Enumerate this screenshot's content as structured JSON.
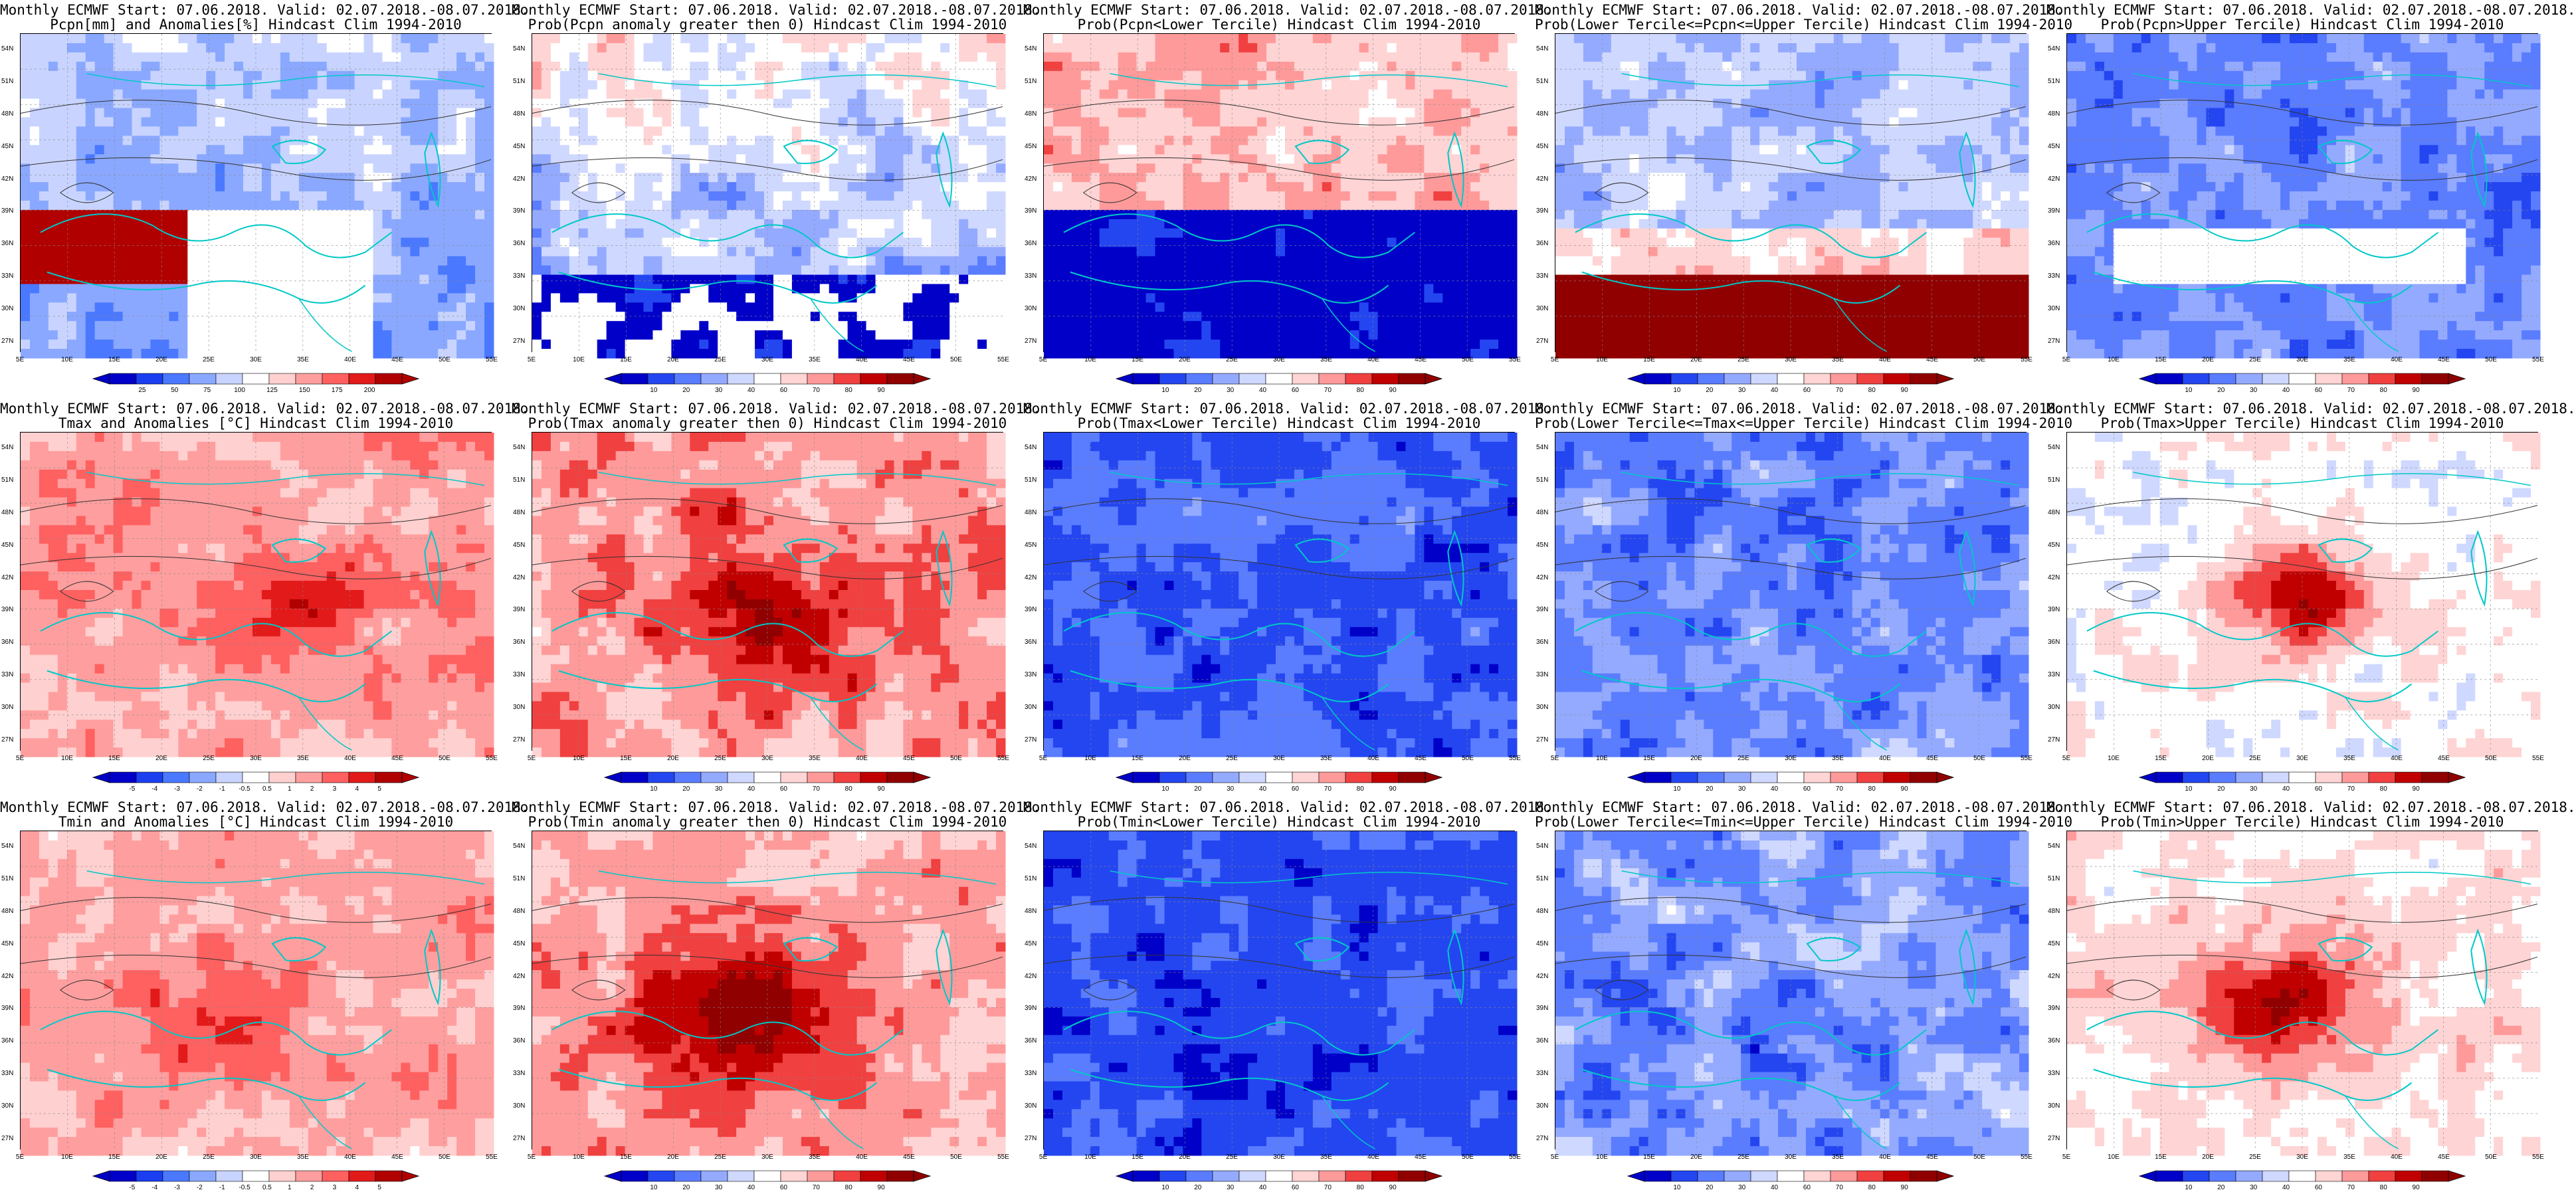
{
  "figure": {
    "lat_labels": [
      "54N",
      "51N",
      "48N",
      "45N",
      "42N",
      "39N",
      "36N",
      "33N",
      "30N",
      "27N"
    ],
    "lon_labels": [
      "5E",
      "10E",
      "15E",
      "20E",
      "25E",
      "30E",
      "35E",
      "40E",
      "45E",
      "50E",
      "55E"
    ],
    "color_anom": [
      "#0000c8",
      "#1a3ef0",
      "#4a78ff",
      "#8aa8ff",
      "#c8d4ff",
      "#ffffff",
      "#ffd0d0",
      "#ff9e9e",
      "#ff6060",
      "#e21a1a",
      "#b00000"
    ],
    "color_prob": [
      "#0000c8",
      "#2446f0",
      "#5a7cff",
      "#94aaff",
      "#cfd8ff",
      "#ffffff",
      "#ffd4d4",
      "#ff9a9a",
      "#f04040",
      "#c00000",
      "#900000"
    ]
  },
  "panels": [
    {
      "line1": "Monthly ECMWF Start: 07.06.2018. Valid: 02.07.2018.-08.07.2018.",
      "line2": "Pcpn[mm] and Anomalies[%] Hindcast Clim 1994-2010",
      "scale": "anom",
      "cbar_labels": [
        "25",
        "50",
        "75",
        "100",
        "125",
        "150",
        "175",
        "200"
      ],
      "pattern": "pcpn_anom"
    },
    {
      "line1": "Monthly ECMWF Start: 07.06.2018. Valid: 02.07.2018.-08.07.2018.",
      "line2": "Prob(Pcpn anomaly greater then 0) Hindcast Clim 1994-2010",
      "scale": "prob",
      "cbar_labels": [
        "10",
        "20",
        "30",
        "40",
        "60",
        "70",
        "80",
        "90"
      ],
      "pattern": "pcpn_gt0"
    },
    {
      "line1": "Monthly ECMWF Start: 07.06.2018. Valid: 02.07.2018.-08.07.2018.",
      "line2": "Prob(Pcpn<Lower Tercile) Hindcast Clim 1994-2010",
      "scale": "prob",
      "cbar_labels": [
        "10",
        "20",
        "30",
        "40",
        "60",
        "70",
        "80",
        "90"
      ],
      "pattern": "pcpn_low"
    },
    {
      "line1": "Monthly ECMWF Start: 07.06.2018. Valid: 02.07.2018.-08.07.2018.",
      "line2": "Prob(Lower Tercile<=Pcpn<=Upper Tercile) Hindcast Clim 1994-2010",
      "scale": "prob",
      "cbar_labels": [
        "10",
        "20",
        "30",
        "40",
        "60",
        "70",
        "80",
        "90"
      ],
      "pattern": "pcpn_mid"
    },
    {
      "line1": "Monthly ECMWF Start: 07.06.2018. Valid: 02.07.2018.-08.07.2018.",
      "line2": "Prob(Pcpn>Upper Tercile) Hindcast Clim 1994-2010",
      "scale": "prob",
      "cbar_labels": [
        "10",
        "20",
        "30",
        "40",
        "60",
        "70",
        "80",
        "90"
      ],
      "pattern": "pcpn_up"
    },
    {
      "line1": "Monthly ECMWF Start: 07.06.2018. Valid: 02.07.2018.-08.07.2018.",
      "line2": "Tmax and Anomalies [°C] Hindcast Clim 1994-2010",
      "scale": "anom",
      "cbar_labels": [
        "-5",
        "-4",
        "-3",
        "-2",
        "-1",
        "-0.5",
        "0.5",
        "1",
        "2",
        "3",
        "4",
        "5"
      ],
      "pattern": "tmax_anom"
    },
    {
      "line1": "Monthly ECMWF Start: 07.06.2018. Valid: 02.07.2018.-08.07.2018.",
      "line2": "Prob(Tmax anomaly greater then 0) Hindcast Clim 1994-2010",
      "scale": "prob",
      "cbar_labels": [
        "10",
        "20",
        "30",
        "40",
        "60",
        "70",
        "80",
        "90"
      ],
      "pattern": "tmax_gt0"
    },
    {
      "line1": "Monthly ECMWF Start: 07.06.2018. Valid: 02.07.2018.-08.07.2018.",
      "line2": "Prob(Tmax<Lower Tercile) Hindcast Clim 1994-2010",
      "scale": "prob",
      "cbar_labels": [
        "10",
        "20",
        "30",
        "40",
        "60",
        "70",
        "80",
        "90"
      ],
      "pattern": "tmax_low"
    },
    {
      "line1": "Monthly ECMWF Start: 07.06.2018. Valid: 02.07.2018.-08.07.2018.",
      "line2": "Prob(Lower Tercile<=Tmax<=Upper Tercile) Hindcast Clim 1994-2010",
      "scale": "prob",
      "cbar_labels": [
        "10",
        "20",
        "30",
        "40",
        "60",
        "70",
        "80",
        "90"
      ],
      "pattern": "tmax_mid"
    },
    {
      "line1": "Monthly ECMWF Start: 07.06.2018. Valid: 02.07.2018.-08.07.2018.",
      "line2": "Prob(Tmax>Upper Tercile) Hindcast Clim 1994-2010",
      "scale": "prob",
      "cbar_labels": [
        "10",
        "20",
        "30",
        "40",
        "60",
        "70",
        "80",
        "90"
      ],
      "pattern": "tmax_up"
    },
    {
      "line1": "Monthly ECMWF Start: 07.06.2018. Valid: 02.07.2018.-08.07.2018.",
      "line2": "Tmin and Anomalies [°C] Hindcast Clim 1994-2010",
      "scale": "anom",
      "cbar_labels": [
        "-5",
        "-4",
        "-3",
        "-2",
        "-1",
        "-0.5",
        "0.5",
        "1",
        "2",
        "3",
        "4",
        "5"
      ],
      "pattern": "tmin_anom"
    },
    {
      "line1": "Monthly ECMWF Start: 07.06.2018. Valid: 02.07.2018.-08.07.2018.",
      "line2": "Prob(Tmin anomaly greater then 0) Hindcast Clim 1994-2010",
      "scale": "prob",
      "cbar_labels": [
        "10",
        "20",
        "30",
        "40",
        "60",
        "70",
        "80",
        "90"
      ],
      "pattern": "tmin_gt0"
    },
    {
      "line1": "Monthly ECMWF Start: 07.06.2018. Valid: 02.07.2018.-08.07.2018.",
      "line2": "Prob(Tmin<Lower Tercile) Hindcast Clim 1994-2010",
      "scale": "prob",
      "cbar_labels": [
        "10",
        "20",
        "30",
        "40",
        "60",
        "70",
        "80",
        "90"
      ],
      "pattern": "tmin_low"
    },
    {
      "line1": "Monthly ECMWF Start: 07.06.2018. Valid: 02.07.2018.-08.07.2018.",
      "line2": "Prob(Lower Tercile<=Tmin<=Upper Tercile) Hindcast Clim 1994-2010",
      "scale": "prob",
      "cbar_labels": [
        "10",
        "20",
        "30",
        "40",
        "60",
        "70",
        "80",
        "90"
      ],
      "pattern": "tmin_mid"
    },
    {
      "line1": "Monthly ECMWF Start: 07.06.2018. Valid: 02.07.2018.-08.07.2018.",
      "line2": "Prob(Tmin>Upper Tercile) Hindcast Clim 1994-2010",
      "scale": "prob",
      "cbar_labels": [
        "10",
        "20",
        "30",
        "40",
        "60",
        "70",
        "80",
        "90"
      ],
      "pattern": "tmin_up"
    }
  ]
}
